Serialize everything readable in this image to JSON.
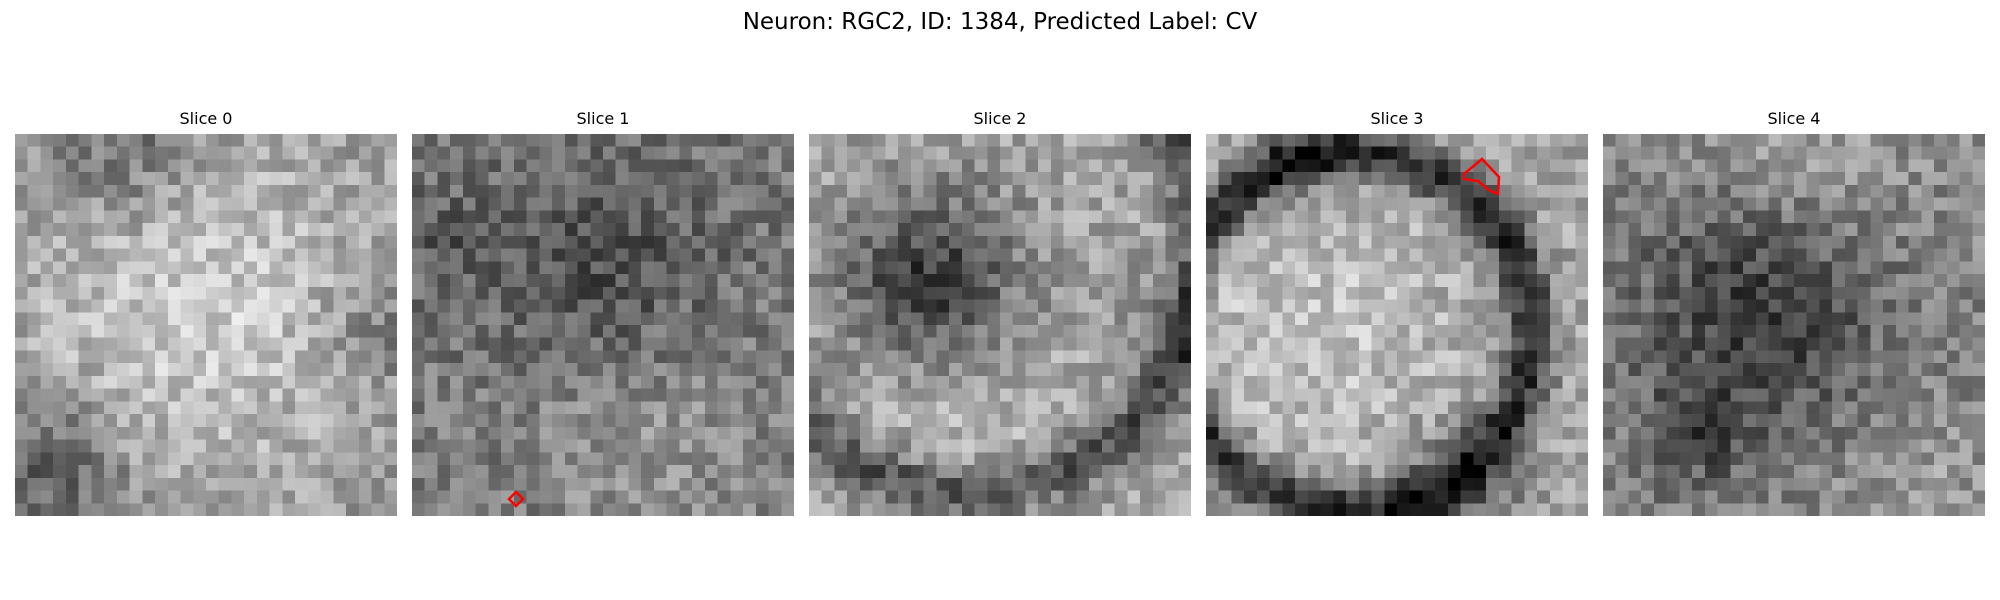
{
  "figure": {
    "title": "Neuron: RGC2, ID: 1384, Predicted Label: CV"
  },
  "colormap": "gray",
  "roi_color": "#ff0000",
  "panels": [
    {
      "title": "Slice 0",
      "roi": null,
      "texture": "bright disk with dark lower-left corner"
    },
    {
      "title": "Slice 1",
      "roi": "small diamond contour near bottom",
      "texture": "mid-gray noisy field with darker blob"
    },
    {
      "title": "Slice 2",
      "roi": null,
      "texture": "bright ring with dark central region and dark right/bottom edge"
    },
    {
      "title": "Slice 3",
      "roi": "pentagon contour near top right",
      "texture": "bright disk bordered by dark crescent on right"
    },
    {
      "title": "Slice 4",
      "roi": null,
      "texture": "dark blob in middle with lighter top and bottom"
    }
  ]
}
